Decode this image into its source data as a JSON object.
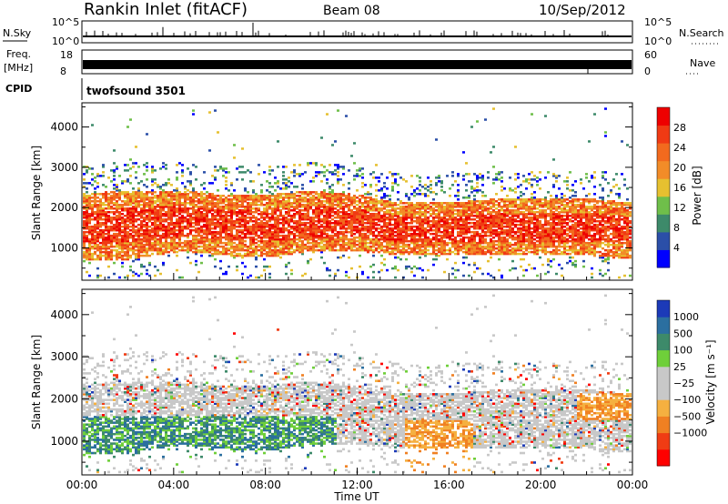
{
  "header": {
    "station": "Rankin Inlet (fitACF)",
    "beam": "Beam 08",
    "date": "10/Sep/2012"
  },
  "strip": {
    "nsky_label": "N.Sky",
    "nsky_ticks": [
      "10^5",
      "10^0"
    ],
    "nsearch_label": "N.Search",
    "freq_label_1": "Freq.",
    "freq_label_2": "[MHz]",
    "freq_ticks": [
      "18",
      "8"
    ],
    "nave_label": "Nave",
    "nave_ticks": [
      "60",
      "0"
    ],
    "cpid_label": "CPID",
    "cpid_value": "twofsound 3501"
  },
  "colors": {
    "power_scale": [
      "#0000ff",
      "#2b4fa8",
      "#3d8a6a",
      "#6fbf4a",
      "#e6c030",
      "#f28c28",
      "#f26a1e",
      "#f03a14",
      "#ee0000"
    ],
    "velocity_scale": [
      "#ff0000",
      "#f03c14",
      "#f08022",
      "#f5b040",
      "#c8c8c8",
      "#c8c8c8",
      "#6fcf3a",
      "#3d8a6a",
      "#2b6fa0",
      "#1c3ab8"
    ]
  },
  "chart_data": [
    {
      "type": "heatmap",
      "name": "Power panel",
      "ylabel": "Slant Range [km]",
      "yticks": [
        "1000",
        "2000",
        "3000",
        "4000"
      ],
      "ylim": [
        200,
        4600
      ],
      "colorbar_label": "Power [dB]",
      "colorbar_ticks": [
        "4",
        "8",
        "12",
        "16",
        "20",
        "24",
        "28"
      ],
      "colorbar_range": [
        0,
        32
      ],
      "xlim": [
        0,
        24
      ],
      "bands": [
        {
          "x": [
            0,
            1.5,
            3,
            4.5,
            6,
            8,
            10,
            12,
            14,
            16,
            18,
            20,
            22,
            24
          ],
          "lower": [
            700,
            650,
            800,
            900,
            800,
            750,
            900,
            900,
            800,
            800,
            800,
            800,
            800,
            700
          ],
          "upper": [
            2300,
            2400,
            2400,
            2400,
            2300,
            2300,
            2400,
            2300,
            2100,
            2100,
            2200,
            2200,
            2200,
            2100
          ]
        }
      ]
    },
    {
      "type": "heatmap",
      "name": "Velocity panel",
      "ylabel": "Slant Range [km]",
      "yticks": [
        "1000",
        "2000",
        "3000",
        "4000"
      ],
      "ylim": [
        200,
        4600
      ],
      "colorbar_label": "Velocity [m s⁻¹]",
      "colorbar_ticks": [
        "1000",
        "500",
        "100",
        "25",
        "−25",
        "−100",
        "−500",
        "−1000"
      ],
      "xlim": [
        0,
        24
      ],
      "xlabel": "Time UT",
      "xticks": [
        "00:00",
        "04:00",
        "08:00",
        "12:00",
        "16:00",
        "20:00",
        "00:00"
      ]
    }
  ]
}
